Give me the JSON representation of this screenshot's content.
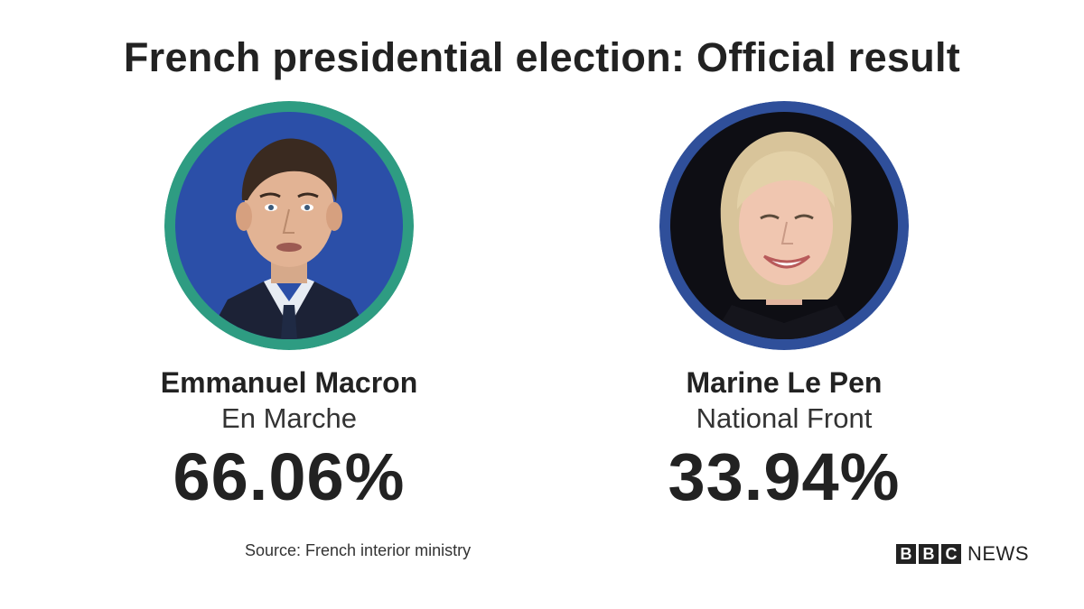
{
  "title": "French presidential election: Official result",
  "candidates": [
    {
      "name": "Emmanuel Macron",
      "party": "En Marche",
      "share": "66.06%",
      "ring_color": "#2e9c82",
      "background_color": "#2b4fa8"
    },
    {
      "name": "Marine Le Pen",
      "party": "National Front",
      "share": "33.94%",
      "ring_color": "#2f4f9a",
      "background_color": "#0e0e14"
    }
  ],
  "source": "Source: French interior ministry",
  "brand": {
    "letters": [
      "B",
      "B",
      "C"
    ],
    "word": "NEWS"
  }
}
